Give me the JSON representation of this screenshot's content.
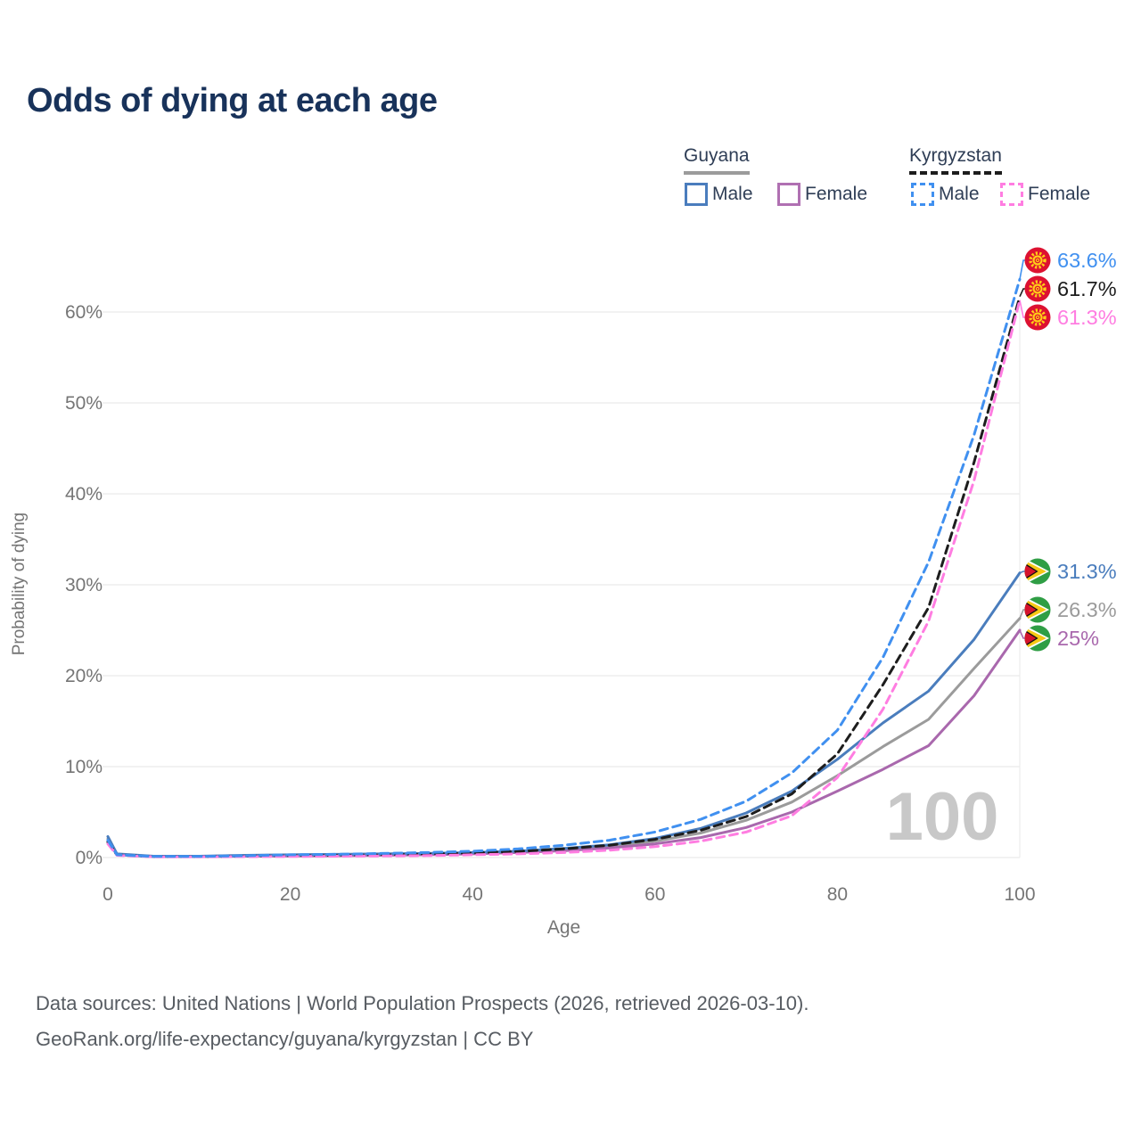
{
  "title": "Odds of dying at each age",
  "legend": {
    "guyana_label": "Guyana",
    "kyrgyzstan_label": "Kyrgyzstan",
    "guyana_male": "Male",
    "guyana_female": "Female",
    "kyrgyzstan_male": "Male",
    "kyrgyzstan_female": "Female"
  },
  "watermark": "100",
  "footer": {
    "line1": "Data sources: United Nations | World Population Prospects (2026, retrieved 2026-03-10).",
    "line2": "GeoRank.org/life-expectancy/guyana/kyrgyzstan | CC BY"
  },
  "colors": {
    "title_text": "#18325a",
    "axis_text": "#757575",
    "gridline": "#e9e9e9",
    "watermark": "#c8c8c8",
    "guyana_male": "#4a7dbd",
    "guyana_female": "#a968ad",
    "guyana_all": "#9b9b9b",
    "kyrgyzstan_male": "#4090f0",
    "kyrgyzstan_female": "#ff7de1",
    "kyrgyzstan_all": "#1d1d1d"
  },
  "chart_data": {
    "type": "line",
    "title": "Odds of dying at each age",
    "xlabel": "Age",
    "ylabel": "Probability of dying",
    "xlim": [
      0,
      100
    ],
    "ylim_pct": [
      0,
      66
    ],
    "grid": "horizontal",
    "x_ticks": [
      0,
      20,
      40,
      60,
      80,
      100
    ],
    "y_ticks": [
      "0%",
      "10%",
      "20%",
      "30%",
      "40%",
      "50%",
      "60%"
    ],
    "x": [
      0,
      1,
      5,
      10,
      15,
      20,
      25,
      30,
      35,
      40,
      45,
      50,
      55,
      60,
      65,
      70,
      75,
      80,
      85,
      90,
      95,
      100
    ],
    "series": [
      {
        "name": "Guyana All",
        "country": "Guyana",
        "sex": "All",
        "style": "solid",
        "color": "#9b9b9b",
        "end_label": "26.3%",
        "values": [
          2.05,
          0.35,
          0.12,
          0.12,
          0.2,
          0.24,
          0.28,
          0.32,
          0.38,
          0.48,
          0.62,
          0.88,
          1.22,
          1.8,
          2.7,
          4.1,
          6.1,
          9.0,
          12.2,
          15.2,
          20.8,
          26.3
        ]
      },
      {
        "name": "Guyana Female",
        "country": "Guyana",
        "sex": "Female",
        "style": "solid",
        "color": "#a968ad",
        "end_label": "25%",
        "values": [
          1.8,
          0.3,
          0.1,
          0.1,
          0.15,
          0.18,
          0.2,
          0.25,
          0.3,
          0.4,
          0.55,
          0.75,
          1.05,
          1.5,
          2.2,
          3.3,
          5.0,
          7.3,
          9.7,
          12.3,
          17.8,
          25.0
        ]
      },
      {
        "name": "Guyana Male",
        "country": "Guyana",
        "sex": "Male",
        "style": "solid",
        "color": "#4a7dbd",
        "end_label": "31.3%",
        "values": [
          2.3,
          0.4,
          0.15,
          0.15,
          0.25,
          0.3,
          0.35,
          0.4,
          0.45,
          0.55,
          0.7,
          1.0,
          1.4,
          2.1,
          3.2,
          4.9,
          7.3,
          10.8,
          14.8,
          18.3,
          24.0,
          31.3
        ]
      },
      {
        "name": "Kyrgyzstan All",
        "country": "Kyrgyzstan",
        "sex": "All",
        "style": "dashed",
        "color": "#1d1d1d",
        "end_label": "61.7%",
        "values": [
          1.7,
          0.28,
          0.1,
          0.1,
          0.15,
          0.2,
          0.25,
          0.3,
          0.4,
          0.5,
          0.68,
          0.95,
          1.35,
          2.0,
          3.0,
          4.5,
          7.0,
          11.4,
          19.0,
          27.5,
          43.5,
          61.7
        ]
      },
      {
        "name": "Kyrgyzstan Female",
        "country": "Kyrgyzstan",
        "sex": "Female",
        "style": "dashed",
        "color": "#ff7de1",
        "end_label": "61.3%",
        "values": [
          1.5,
          0.25,
          0.08,
          0.08,
          0.1,
          0.12,
          0.15,
          0.18,
          0.22,
          0.3,
          0.4,
          0.55,
          0.8,
          1.2,
          1.8,
          2.8,
          4.6,
          8.8,
          16.3,
          26.0,
          41.5,
          61.3
        ]
      },
      {
        "name": "Kyrgyzstan Male",
        "country": "Kyrgyzstan",
        "sex": "Male",
        "style": "dashed",
        "color": "#4090f0",
        "end_label": "63.6%",
        "values": [
          1.9,
          0.3,
          0.12,
          0.12,
          0.2,
          0.3,
          0.35,
          0.45,
          0.55,
          0.7,
          0.95,
          1.35,
          1.9,
          2.8,
          4.2,
          6.2,
          9.3,
          14.0,
          22.0,
          32.5,
          46.5,
          63.6
        ]
      }
    ]
  }
}
